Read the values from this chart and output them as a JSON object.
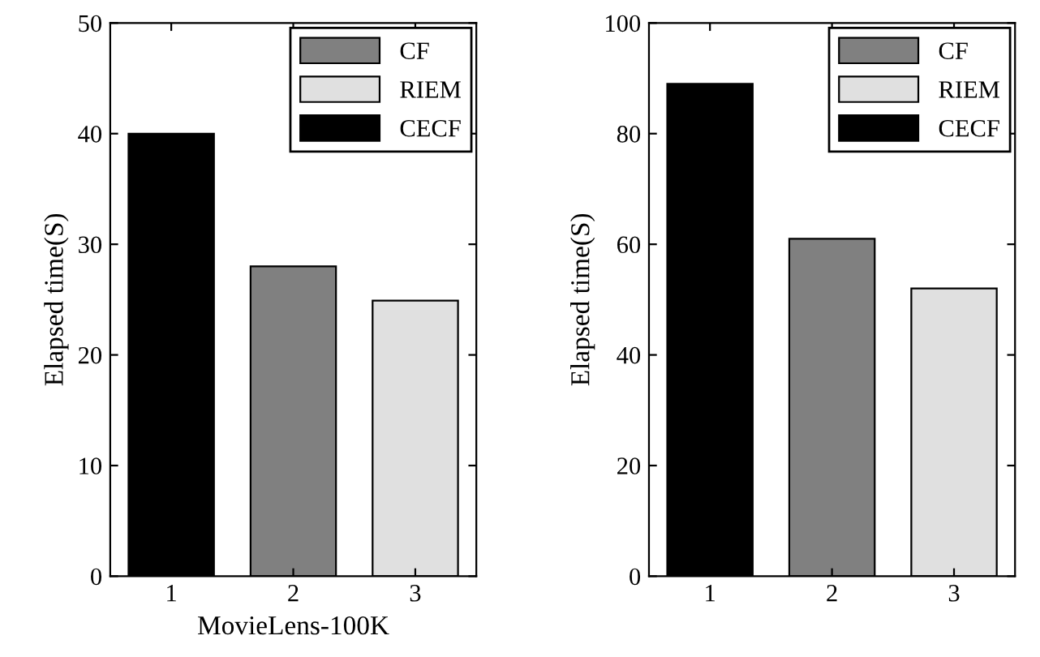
{
  "chart_data": [
    {
      "type": "bar",
      "xlabel": "MovieLens-100K",
      "ylabel": "Elapsed time(S)",
      "categories": [
        "1",
        "2",
        "3"
      ],
      "series": [
        {
          "name": "CF",
          "color": "#808080",
          "values": [
            null,
            28,
            null
          ]
        },
        {
          "name": "RIEM",
          "color": "#e0e0e0",
          "values": [
            null,
            null,
            24.9
          ]
        },
        {
          "name": "CECF",
          "color": "#000000",
          "values": [
            40,
            null,
            null
          ]
        }
      ],
      "ylim": [
        0,
        50
      ],
      "yticks": [
        0,
        10,
        20,
        30,
        40,
        50
      ],
      "legend": "top right",
      "grid": false
    },
    {
      "type": "bar",
      "ylabel": "Elapsed time(S)",
      "categories": [
        "1",
        "2",
        "3"
      ],
      "series": [
        {
          "name": "CF",
          "color": "#808080",
          "values": [
            null,
            61,
            null
          ]
        },
        {
          "name": "RIEM",
          "color": "#e0e0e0",
          "values": [
            null,
            null,
            52
          ]
        },
        {
          "name": "CECF",
          "color": "#000000",
          "values": [
            89,
            null,
            null
          ]
        }
      ],
      "ylim": [
        0,
        100
      ],
      "yticks": [
        0,
        20,
        40,
        60,
        80,
        100
      ],
      "legend": "top right",
      "grid": false
    }
  ]
}
